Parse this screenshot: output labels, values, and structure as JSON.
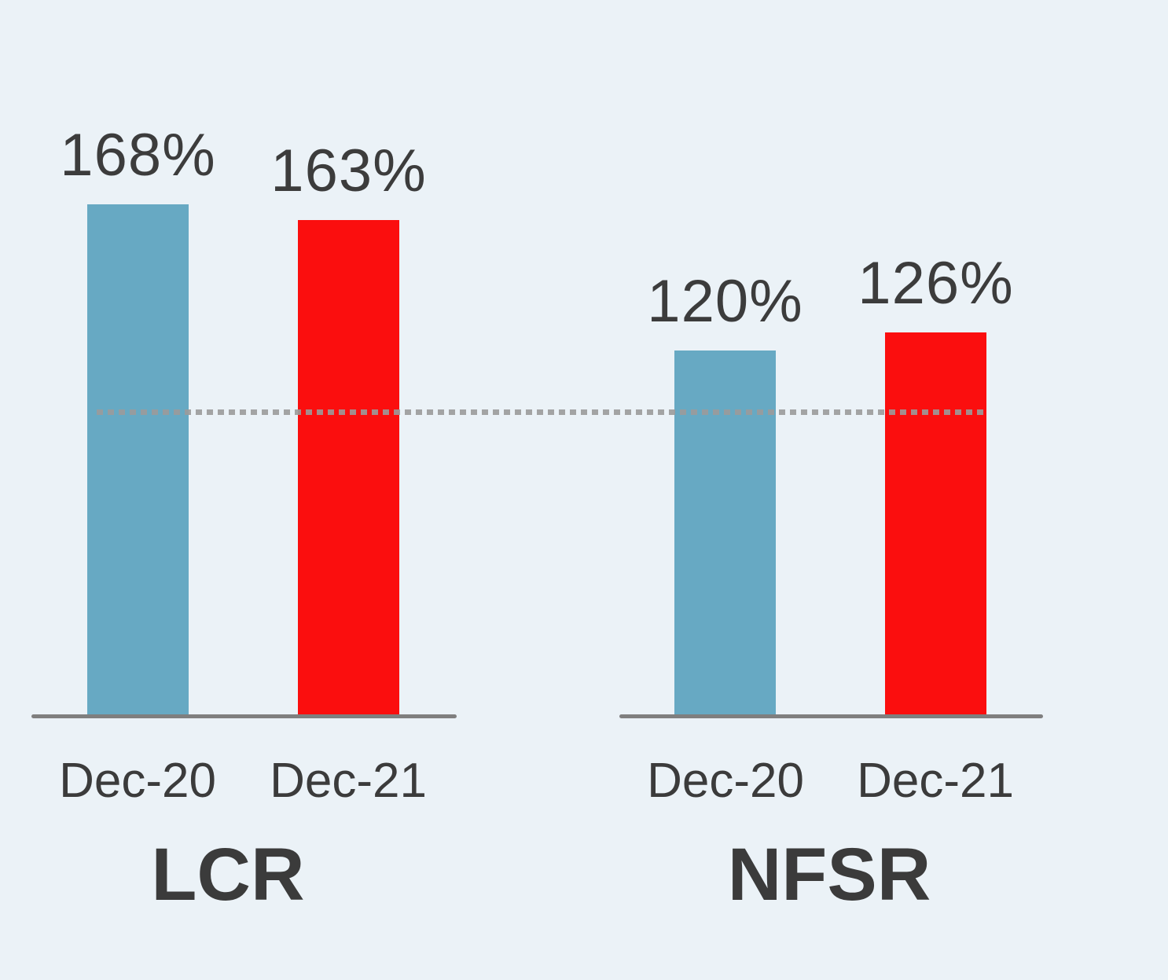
{
  "chart_data": {
    "type": "bar",
    "title": "",
    "grid": false,
    "legend": false,
    "background": "#ebf2f7",
    "text_color": "#3c3c3c",
    "ylim": [
      0,
      175
    ],
    "units": "%",
    "groups": [
      {
        "name": "LCR",
        "bars": [
          {
            "category": "Dec-20",
            "value": 168,
            "label": "168%",
            "color": "#67a9c3"
          },
          {
            "category": "Dec-21",
            "value": 163,
            "label": "163%",
            "color": "#fb0e0e"
          }
        ]
      },
      {
        "name": "NFSR",
        "bars": [
          {
            "category": "Dec-20",
            "value": 120,
            "label": "120%",
            "color": "#67a9c3"
          },
          {
            "category": "Dec-21",
            "value": 126,
            "label": "126%",
            "color": "#fb0e0e"
          }
        ]
      }
    ],
    "reference_line": {
      "value": 100,
      "style": "dotted",
      "color": "#9b9b9b"
    },
    "axis_color": "#7f7f7f"
  }
}
